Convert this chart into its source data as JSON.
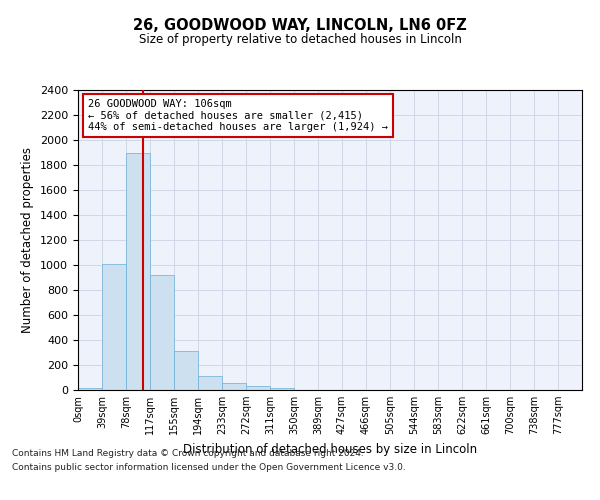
{
  "title_line1": "26, GOODWOOD WAY, LINCOLN, LN6 0FZ",
  "title_line2": "Size of property relative to detached houses in Lincoln",
  "xlabel": "Distribution of detached houses by size in Lincoln",
  "ylabel": "Number of detached properties",
  "bar_labels": [
    "0sqm",
    "39sqm",
    "78sqm",
    "117sqm",
    "155sqm",
    "194sqm",
    "233sqm",
    "272sqm",
    "311sqm",
    "350sqm",
    "389sqm",
    "427sqm",
    "466sqm",
    "505sqm",
    "544sqm",
    "583sqm",
    "622sqm",
    "661sqm",
    "700sqm",
    "738sqm",
    "777sqm"
  ],
  "bar_values": [
    20,
    1010,
    1900,
    920,
    310,
    110,
    55,
    35,
    20,
    0,
    0,
    0,
    0,
    0,
    0,
    0,
    0,
    0,
    0,
    0,
    0
  ],
  "bar_color": "#cce0f0",
  "bar_edge_color": "#6aaed6",
  "ylim": [
    0,
    2400
  ],
  "yticks": [
    0,
    200,
    400,
    600,
    800,
    1000,
    1200,
    1400,
    1600,
    1800,
    2000,
    2200,
    2400
  ],
  "vline_x": 2.718,
  "vline_color": "#cc0000",
  "annotation_text": "26 GOODWOOD WAY: 106sqm\n← 56% of detached houses are smaller (2,415)\n44% of semi-detached houses are larger (1,924) →",
  "annotation_box_color": "#cc0000",
  "footnote_line1": "Contains HM Land Registry data © Crown copyright and database right 2024.",
  "footnote_line2": "Contains public sector information licensed under the Open Government Licence v3.0.",
  "bg_color": "#eef2fa",
  "grid_color": "#d0d8e8",
  "figwidth": 6.0,
  "figheight": 5.0,
  "dpi": 100
}
